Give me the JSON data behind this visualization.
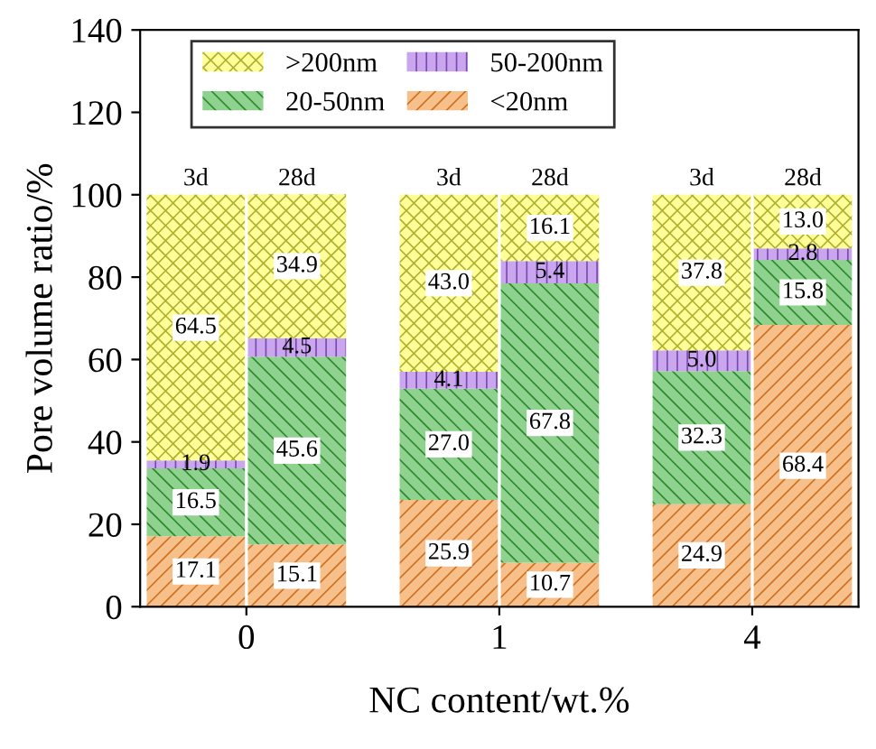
{
  "chart_data": {
    "type": "bar",
    "stacked": true,
    "xlabel": "NC content/wt.%",
    "ylabel": "Pore volume ratio/%",
    "categories": [
      "3d",
      "28d",
      "3d",
      "28d",
      "3d",
      "28d"
    ],
    "annotations": [
      "0",
      "1",
      "4"
    ],
    "series": [
      {
        "name": "<20nm",
        "color": "#f7c08a",
        "values": [
          17.1,
          15.1,
          25.9,
          10.7,
          24.9,
          68.4
        ],
        "value_labels": [
          "17.1",
          "15.1",
          "25.9",
          "10.7",
          "24.9",
          "68.4"
        ]
      },
      {
        "name": "20-50nm",
        "color": "#8fd18f",
        "values": [
          16.5,
          45.6,
          27.0,
          67.8,
          32.3,
          15.8
        ],
        "value_labels": [
          "16.5",
          "45.6",
          "27.0",
          "67.8",
          "32.3",
          "15.8"
        ]
      },
      {
        "name": "50-200nm",
        "color": "#c9a6ee",
        "values": [
          1.9,
          4.5,
          4.1,
          5.4,
          5.0,
          2.8
        ],
        "value_labels": [
          "1.9",
          "4.5",
          "4.1",
          "5.4",
          "5.0",
          "2.8"
        ]
      },
      {
        "name": ">200nm",
        "color": "#ffff99",
        "values": [
          64.5,
          34.9,
          43.0,
          16.1,
          37.8,
          13.0
        ],
        "value_labels": [
          "64.5",
          "34.9",
          "43.0",
          "16.1",
          "37.8",
          "13.0"
        ]
      }
    ],
    "ylim": [
      0,
      140
    ],
    "yticks": [
      0,
      20,
      40,
      60,
      80,
      100,
      120,
      140
    ],
    "legend": "top left"
  }
}
